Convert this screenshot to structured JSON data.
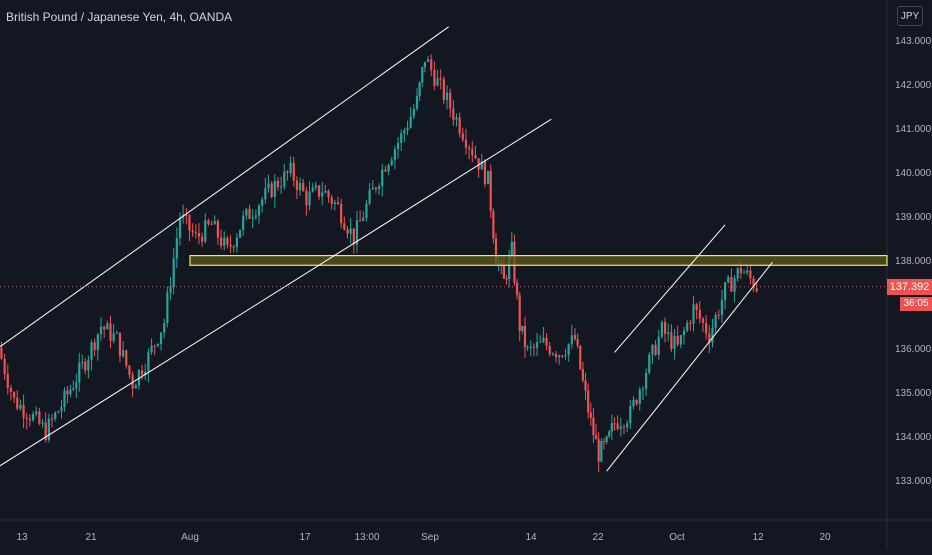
{
  "header": {
    "symbol_title": "British Pound / Japanese Yen, 4h, OANDA",
    "currency": "JPY"
  },
  "colors": {
    "background": "#131722",
    "up": "#26a69a",
    "down": "#ef5350",
    "zone_fill": "#5b5a1e",
    "zone_border": "#f5e663",
    "trendline": "#ffffff",
    "axis_text": "#b2b5be"
  },
  "chart_data": {
    "type": "candlestick",
    "title": "British Pound / Japanese Yen, 4h, OANDA",
    "y_axis": {
      "ticks": [
        "143.000",
        "142.000",
        "141.000",
        "140.000",
        "139.000",
        "138.000",
        "136.000",
        "135.000",
        "134.000",
        "133.000"
      ],
      "tick_values": [
        143,
        142,
        141,
        140,
        139,
        138,
        136,
        135,
        134,
        133
      ],
      "range": [
        132.4,
        143.6
      ]
    },
    "x_axis": {
      "ticks": [
        "13",
        "21",
        "Aug",
        "17",
        "13:00",
        "Sep",
        "14",
        "22",
        "Oct",
        "12",
        "20"
      ]
    },
    "current_price": "137.392",
    "countdown": "36:05",
    "horizontal_zone": {
      "low": 137.88,
      "high": 138.1
    },
    "trendlines": [
      {
        "name": "upper channel (Jul–Sep)",
        "from": [
          "Jul 10",
          136.0
        ],
        "to": [
          "Sep 5",
          143.3
        ]
      },
      {
        "name": "lower channel (Jul–Sep)",
        "from": [
          "Jul 10",
          133.3
        ],
        "to": [
          "Sep 18",
          141.2
        ]
      },
      {
        "name": "upper channel (Sep–Oct)",
        "from": [
          "Sep 26",
          135.9
        ],
        "to": [
          "Oct 10",
          138.8
        ]
      },
      {
        "name": "lower channel (Sep–Oct)",
        "from": [
          "Sep 25",
          133.2
        ],
        "to": [
          "Oct 16",
          137.95
        ]
      }
    ],
    "price_path": [
      [
        "Jul 10",
        136.0
      ],
      [
        "Jul 12",
        134.8
      ],
      [
        "Jul 14",
        134.5
      ],
      [
        "Jul 16",
        134.1
      ],
      [
        "Jul 18",
        134.7
      ],
      [
        "Jul 21",
        135.7
      ],
      [
        "Jul 23",
        136.5
      ],
      [
        "Jul 25",
        136.2
      ],
      [
        "Jul 27",
        135.2
      ],
      [
        "Jul 29",
        135.8
      ],
      [
        "Jul 31",
        136.6
      ],
      [
        "Aug 2",
        139.0
      ],
      [
        "Aug 4",
        138.5
      ],
      [
        "Aug 6",
        138.8
      ],
      [
        "Aug 8",
        138.2
      ],
      [
        "Aug 10",
        138.9
      ],
      [
        "Aug 12",
        139.3
      ],
      [
        "Aug 14",
        139.7
      ],
      [
        "Aug 16",
        140.0
      ],
      [
        "Aug 18",
        139.4
      ],
      [
        "Aug 20",
        139.6
      ],
      [
        "Aug 22",
        139.2
      ],
      [
        "Aug 24",
        138.5
      ],
      [
        "Aug 26",
        139.4
      ],
      [
        "Aug 28",
        140.2
      ],
      [
        "Aug 30",
        140.8
      ],
      [
        "Sep 1",
        141.6
      ],
      [
        "Sep 2",
        142.6
      ],
      [
        "Sep 4",
        141.9
      ],
      [
        "Sep 6",
        141.2
      ],
      [
        "Sep 8",
        140.5
      ],
      [
        "Sep 10",
        139.8
      ],
      [
        "Sep 11",
        138.1
      ],
      [
        "Sep 12",
        137.5
      ],
      [
        "Sep 13",
        138.2
      ],
      [
        "Sep 14",
        136.5
      ],
      [
        "Sep 15",
        135.9
      ],
      [
        "Sep 17",
        136.1
      ],
      [
        "Sep 19",
        135.9
      ],
      [
        "Sep 21",
        136.2
      ],
      [
        "Sep 22",
        135.2
      ],
      [
        "Sep 23",
        134.3
      ],
      [
        "Sep 24",
        133.6
      ],
      [
        "Sep 25",
        133.8
      ],
      [
        "Sep 26",
        134.3
      ],
      [
        "Sep 28",
        134.5
      ],
      [
        "Sep 30",
        135.5
      ],
      [
        "Oct 2",
        136.4
      ],
      [
        "Oct 4",
        136.0
      ],
      [
        "Oct 6",
        136.9
      ],
      [
        "Oct 8",
        136.3
      ],
      [
        "Oct 10",
        137.3
      ],
      [
        "Oct 12",
        137.8
      ],
      [
        "Oct 14",
        137.4
      ]
    ]
  }
}
